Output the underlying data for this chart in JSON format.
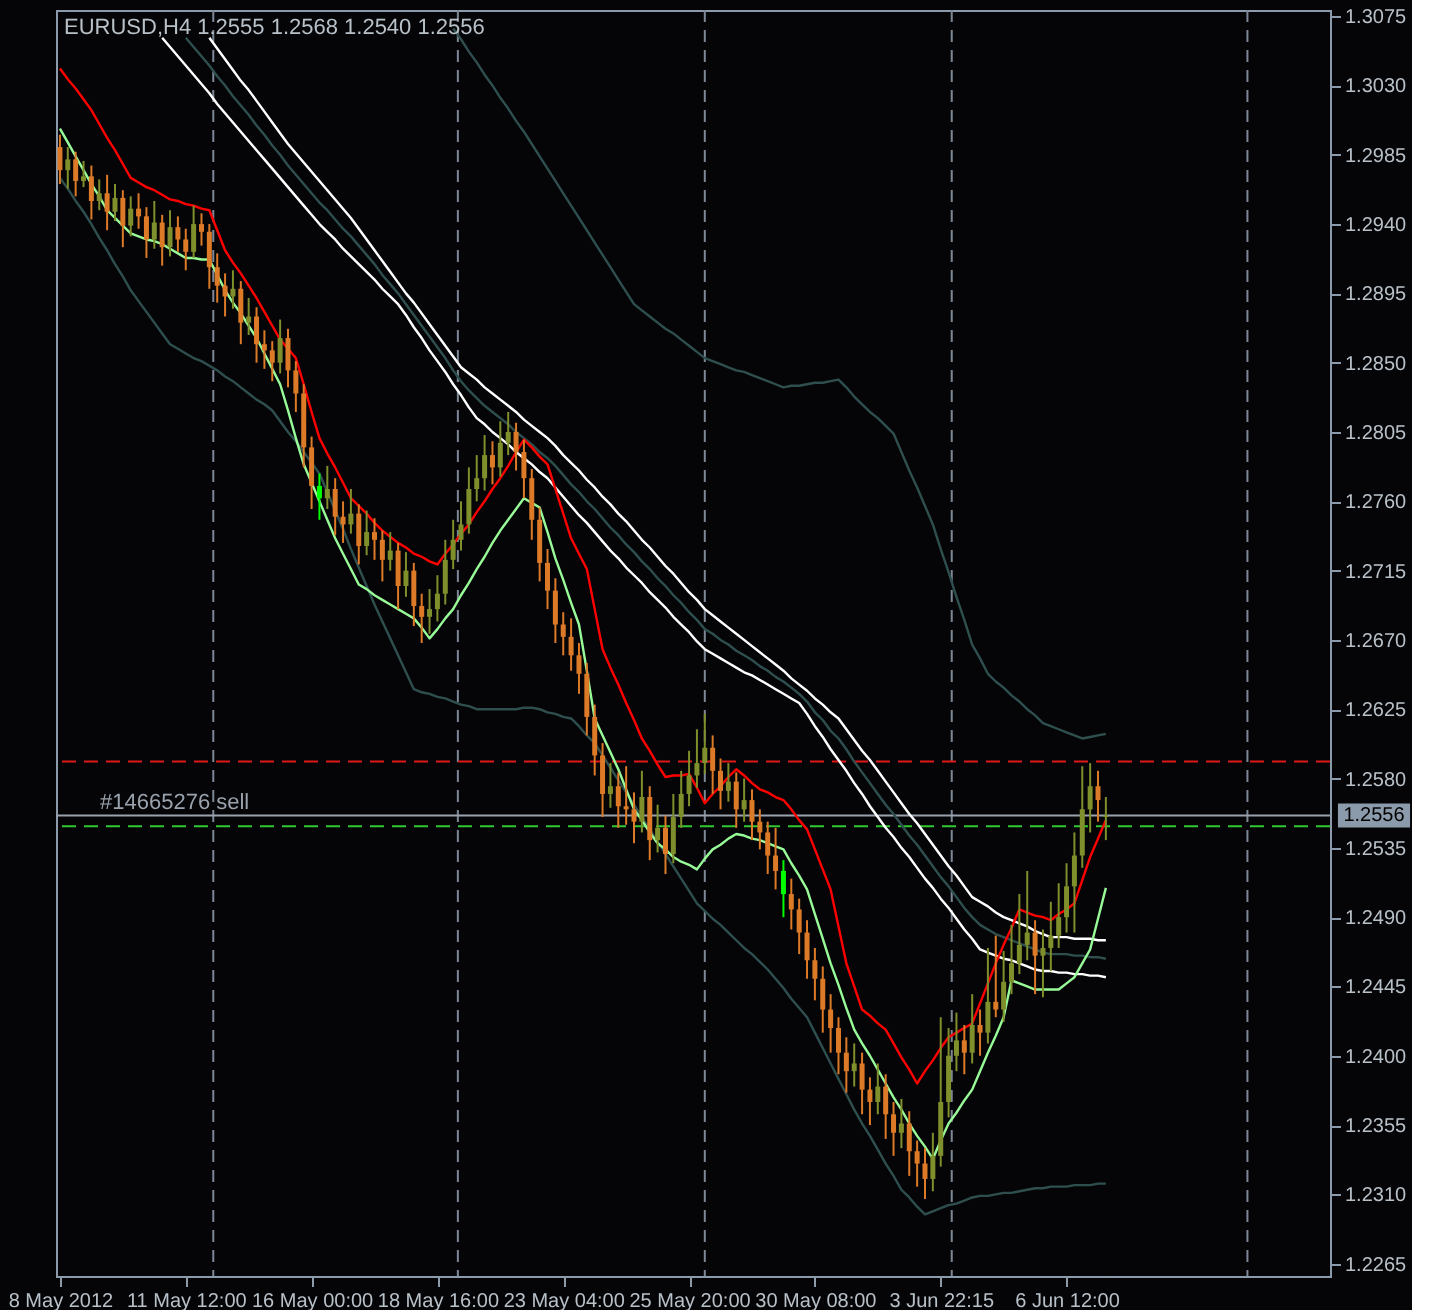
{
  "chart_data": {
    "type": "candlestick",
    "title": "EURUSD,H4  1.2555 1.2568 1.2540 1.2556",
    "categories": [
      "8 May 2012",
      null,
      null,
      null,
      null,
      null,
      null,
      null,
      null,
      null,
      null,
      null,
      null,
      null,
      null,
      null,
      "11 May 12:00",
      null,
      null,
      null,
      null,
      null,
      null,
      null,
      null,
      null,
      null,
      null,
      null,
      null,
      null,
      null,
      "16 May 00:00",
      null,
      null,
      null,
      null,
      null,
      null,
      null,
      null,
      null,
      null,
      null,
      null,
      null,
      null,
      null,
      "18 May 16:00",
      null,
      null,
      null,
      null,
      null,
      null,
      null,
      null,
      null,
      null,
      null,
      null,
      null,
      null,
      null,
      "23 May 04:00",
      null,
      null,
      null,
      null,
      null,
      null,
      null,
      null,
      null,
      null,
      null,
      null,
      null,
      null,
      null,
      "25 May 20:00",
      null,
      null,
      null,
      null,
      null,
      null,
      null,
      null,
      null,
      null,
      null,
      null,
      null,
      null,
      null,
      "30 May 08:00",
      null,
      null,
      null,
      null,
      null,
      null,
      null,
      null,
      null,
      null,
      null,
      null,
      null,
      null,
      null,
      "3 Jun 22:15",
      null,
      null,
      null,
      null,
      null,
      null,
      null,
      null,
      null,
      null,
      null,
      null,
      null,
      null,
      null,
      "6 Jun 12:00",
      null,
      null,
      null,
      null,
      null
    ],
    "ohlc": [
      [
        1.299,
        1.2998,
        1.2966,
        1.2975
      ],
      [
        1.2975,
        1.299,
        1.2963,
        1.2982
      ],
      [
        1.2982,
        1.2987,
        1.2958,
        1.2968
      ],
      [
        1.2968,
        1.2981,
        1.2964,
        1.2971
      ],
      [
        1.2971,
        1.2978,
        1.2943,
        1.2955
      ],
      [
        1.2955,
        1.2969,
        1.2949,
        1.296
      ],
      [
        1.296,
        1.2972,
        1.2936,
        1.2948
      ],
      [
        1.2948,
        1.2966,
        1.2942,
        1.2957
      ],
      [
        1.2957,
        1.2962,
        1.2925,
        1.2939
      ],
      [
        1.2939,
        1.2958,
        1.2932,
        1.295
      ],
      [
        1.295,
        1.296,
        1.2937,
        1.2945
      ],
      [
        1.2945,
        1.2951,
        1.2918,
        1.293
      ],
      [
        1.293,
        1.2955,
        1.2924,
        1.2941
      ],
      [
        1.2941,
        1.2946,
        1.2913,
        1.2925
      ],
      [
        1.2925,
        1.2949,
        1.2919,
        1.2938
      ],
      [
        1.2938,
        1.2945,
        1.2922,
        1.293
      ],
      [
        1.293,
        1.2937,
        1.291,
        1.2922
      ],
      [
        1.2922,
        1.2952,
        1.2918,
        1.294
      ],
      [
        1.294,
        1.2947,
        1.2926,
        1.2935
      ],
      [
        1.2935,
        1.294,
        1.2898,
        1.2912
      ],
      [
        1.2912,
        1.2921,
        1.2889,
        1.29
      ],
      [
        1.29,
        1.2908,
        1.288,
        1.2893
      ],
      [
        1.2893,
        1.291,
        1.2885,
        1.2898
      ],
      [
        1.2898,
        1.2903,
        1.2862,
        1.2876
      ],
      [
        1.2876,
        1.2892,
        1.2868,
        1.288
      ],
      [
        1.288,
        1.2886,
        1.285,
        1.2862
      ],
      [
        1.2862,
        1.2871,
        1.2846,
        1.2858
      ],
      [
        1.2858,
        1.2864,
        1.2838,
        1.285
      ],
      [
        1.285,
        1.2878,
        1.2843,
        1.2866
      ],
      [
        1.2866,
        1.2872,
        1.2834,
        1.2845
      ],
      [
        1.2845,
        1.2851,
        1.2818,
        1.283
      ],
      [
        1.283,
        1.2836,
        1.2782,
        1.2795
      ],
      [
        1.2795,
        1.2802,
        1.2755,
        1.277
      ],
      [
        1.277,
        1.2778,
        1.2748,
        1.2762
      ],
      [
        1.2762,
        1.2783,
        1.2755,
        1.2768
      ],
      [
        1.2768,
        1.2775,
        1.2738,
        1.275
      ],
      [
        1.275,
        1.276,
        1.2733,
        1.2745
      ],
      [
        1.2745,
        1.2768,
        1.2739,
        1.2752
      ],
      [
        1.2752,
        1.2758,
        1.2719,
        1.2731
      ],
      [
        1.2731,
        1.2754,
        1.2725,
        1.274
      ],
      [
        1.274,
        1.2749,
        1.2722,
        1.2735
      ],
      [
        1.2735,
        1.2741,
        1.2708,
        1.2722
      ],
      [
        1.2722,
        1.274,
        1.2715,
        1.2728
      ],
      [
        1.2728,
        1.2733,
        1.269,
        1.2705
      ],
      [
        1.2705,
        1.2727,
        1.2698,
        1.2715
      ],
      [
        1.2715,
        1.272,
        1.2679,
        1.2692
      ],
      [
        1.2692,
        1.27,
        1.2668,
        1.2685
      ],
      [
        1.2685,
        1.2703,
        1.2674,
        1.269
      ],
      [
        1.269,
        1.2712,
        1.2682,
        1.27
      ],
      [
        1.27,
        1.2735,
        1.2693,
        1.2722
      ],
      [
        1.2722,
        1.2748,
        1.2716,
        1.2735
      ],
      [
        1.2735,
        1.276,
        1.2728,
        1.2745
      ],
      [
        1.2745,
        1.2782,
        1.2739,
        1.2768
      ],
      [
        1.2768,
        1.279,
        1.276,
        1.2775
      ],
      [
        1.2775,
        1.2803,
        1.2767,
        1.279
      ],
      [
        1.279,
        1.2799,
        1.2771,
        1.2782
      ],
      [
        1.2782,
        1.2812,
        1.2776,
        1.2798
      ],
      [
        1.2798,
        1.2818,
        1.279,
        1.2805
      ],
      [
        1.2805,
        1.2811,
        1.278,
        1.2792
      ],
      [
        1.2792,
        1.28,
        1.2762,
        1.2775
      ],
      [
        1.2775,
        1.2781,
        1.2735,
        1.2748
      ],
      [
        1.2748,
        1.2756,
        1.2708,
        1.272
      ],
      [
        1.272,
        1.2729,
        1.269,
        1.2702
      ],
      [
        1.2702,
        1.271,
        1.2668,
        1.268
      ],
      [
        1.268,
        1.2688,
        1.266,
        1.2672
      ],
      [
        1.2672,
        1.2684,
        1.265,
        1.266
      ],
      [
        1.266,
        1.2668,
        1.2635,
        1.2648
      ],
      [
        1.2648,
        1.2655,
        1.2608,
        1.262
      ],
      [
        1.262,
        1.2628,
        1.2582,
        1.2595
      ],
      [
        1.2595,
        1.2603,
        1.2555,
        1.257
      ],
      [
        1.257,
        1.259,
        1.2561,
        1.2575
      ],
      [
        1.2575,
        1.2584,
        1.2548,
        1.2562
      ],
      [
        1.2562,
        1.2588,
        1.255,
        1.256
      ],
      [
        1.256,
        1.2571,
        1.2538,
        1.2552
      ],
      [
        1.2552,
        1.2585,
        1.2545,
        1.2568
      ],
      [
        1.2568,
        1.2575,
        1.2527,
        1.254
      ],
      [
        1.254,
        1.2563,
        1.2532,
        1.2548
      ],
      [
        1.2548,
        1.2556,
        1.2518,
        1.2531
      ],
      [
        1.2531,
        1.257,
        1.2525,
        1.2555
      ],
      [
        1.2555,
        1.2585,
        1.2548,
        1.257
      ],
      [
        1.257,
        1.2598,
        1.2562,
        1.2582
      ],
      [
        1.2582,
        1.2612,
        1.2574,
        1.259
      ],
      [
        1.259,
        1.2622,
        1.2583,
        1.26
      ],
      [
        1.26,
        1.2608,
        1.257,
        1.2585
      ],
      [
        1.2585,
        1.2593,
        1.256,
        1.2572
      ],
      [
        1.2572,
        1.259,
        1.2565,
        1.2578
      ],
      [
        1.2578,
        1.2584,
        1.2548,
        1.256
      ],
      [
        1.256,
        1.258,
        1.2552,
        1.2566
      ],
      [
        1.2566,
        1.2573,
        1.254,
        1.2552
      ],
      [
        1.2552,
        1.256,
        1.2534,
        1.2545
      ],
      [
        1.2545,
        1.2552,
        1.2518,
        1.253
      ],
      [
        1.253,
        1.2548,
        1.2508,
        1.252
      ],
      [
        1.252,
        1.2527,
        1.249,
        1.2505
      ],
      [
        1.2505,
        1.2515,
        1.2482,
        1.2495
      ],
      [
        1.2495,
        1.2502,
        1.2466,
        1.248
      ],
      [
        1.248,
        1.2488,
        1.245,
        1.2462
      ],
      [
        1.2462,
        1.247,
        1.2436,
        1.245
      ],
      [
        1.245,
        1.2458,
        1.2415,
        1.243
      ],
      [
        1.243,
        1.244,
        1.2402,
        1.2418
      ],
      [
        1.2418,
        1.2425,
        1.2388,
        1.2402
      ],
      [
        1.2402,
        1.2412,
        1.2376,
        1.239
      ],
      [
        1.239,
        1.2408,
        1.238,
        1.2395
      ],
      [
        1.2395,
        1.2402,
        1.2362,
        1.2378
      ],
      [
        1.2378,
        1.2386,
        1.2355,
        1.237
      ],
      [
        1.237,
        1.2395,
        1.2362,
        1.238
      ],
      [
        1.238,
        1.2388,
        1.2346,
        1.2362
      ],
      [
        1.2362,
        1.237,
        1.2335,
        1.235
      ],
      [
        1.235,
        1.2372,
        1.234,
        1.2356
      ],
      [
        1.2356,
        1.2364,
        1.2322,
        1.2338
      ],
      [
        1.2338,
        1.2345,
        1.2315,
        1.233
      ],
      [
        1.233,
        1.234,
        1.2307,
        1.232
      ],
      [
        1.232,
        1.235,
        1.2312,
        1.2335
      ],
      [
        1.2335,
        1.2425,
        1.2328,
        1.237
      ],
      [
        1.237,
        1.2418,
        1.236,
        1.24
      ],
      [
        1.24,
        1.2428,
        1.239,
        1.241
      ],
      [
        1.241,
        1.242,
        1.2388,
        1.2402
      ],
      [
        1.2402,
        1.244,
        1.2395,
        1.242
      ],
      [
        1.242,
        1.243,
        1.24,
        1.2415
      ],
      [
        1.2415,
        1.247,
        1.2408,
        1.2435
      ],
      [
        1.2435,
        1.2478,
        1.2425,
        1.243
      ],
      [
        1.243,
        1.2468,
        1.2422,
        1.2448
      ],
      [
        1.2448,
        1.2485,
        1.244,
        1.246
      ],
      [
        1.246,
        1.2505,
        1.2453,
        1.2472
      ],
      [
        1.2472,
        1.252,
        1.2462,
        1.248
      ],
      [
        1.248,
        1.2488,
        1.244,
        1.2465
      ],
      [
        1.2465,
        1.2482,
        1.2438,
        1.247
      ],
      [
        1.247,
        1.25,
        1.2455,
        1.2478
      ],
      [
        1.2478,
        1.2512,
        1.247,
        1.249
      ],
      [
        1.249,
        1.2525,
        1.248,
        1.251
      ],
      [
        1.251,
        1.2545,
        1.248,
        1.253
      ],
      [
        1.253,
        1.2588,
        1.2522,
        1.256
      ],
      [
        1.256,
        1.259,
        1.2545,
        1.2575
      ],
      [
        1.2575,
        1.2585,
        1.2552,
        1.2566
      ],
      [
        1.2555,
        1.2568,
        1.254,
        1.2556
      ]
    ],
    "colors": [
      "#dd7a27",
      "#7f8f2b",
      "#dd7a27",
      "#7f8f2b",
      "#dd7a27",
      "#7f8f2b",
      "#dd7a27",
      "#7f8f2b",
      "#dd7a27",
      "#7f8f2b",
      "#dd7a27",
      "#dd7a27",
      "#7f8f2b",
      "#dd7a27",
      "#7f8f2b",
      "#dd7a27",
      "#dd7a27",
      "#7f8f2b",
      "#dd7a27",
      "#dd7a27",
      "#dd7a27",
      "#dd7a27",
      "#7f8f2b",
      "#dd7a27",
      "#7f8f2b",
      "#dd7a27",
      "#dd7a27",
      "#dd7a27",
      "#7f8f2b",
      "#dd7a27",
      "#dd7a27",
      "#dd7a27",
      "#dd7a27",
      "#00ff00",
      "#7f8f2b",
      "#dd7a27",
      "#dd7a27",
      "#7f8f2b",
      "#dd7a27",
      "#7f8f2b",
      "#dd7a27",
      "#dd7a27",
      "#7f8f2b",
      "#dd7a27",
      "#7f8f2b",
      "#dd7a27",
      "#dd7a27",
      "#7f8f2b",
      "#7f8f2b",
      "#7f8f2b",
      "#7f8f2b",
      "#7f8f2b",
      "#7f8f2b",
      "#7f8f2b",
      "#7f8f2b",
      "#dd7a27",
      "#7f8f2b",
      "#7f8f2b",
      "#dd7a27",
      "#dd7a27",
      "#dd7a27",
      "#dd7a27",
      "#dd7a27",
      "#dd7a27",
      "#dd7a27",
      "#dd7a27",
      "#dd7a27",
      "#dd7a27",
      "#dd7a27",
      "#dd7a27",
      "#7f8f2b",
      "#dd7a27",
      "#dd7a27",
      "#dd7a27",
      "#7f8f2b",
      "#dd7a27",
      "#7f8f2b",
      "#dd7a27",
      "#7f8f2b",
      "#7f8f2b",
      "#7f8f2b",
      "#7f8f2b",
      "#7f8f2b",
      "#dd7a27",
      "#dd7a27",
      "#7f8f2b",
      "#dd7a27",
      "#7f8f2b",
      "#dd7a27",
      "#dd7a27",
      "#dd7a27",
      "#dd7a27",
      "#00ff00",
      "#dd7a27",
      "#dd7a27",
      "#dd7a27",
      "#dd7a27",
      "#dd7a27",
      "#dd7a27",
      "#dd7a27",
      "#dd7a27",
      "#7f8f2b",
      "#dd7a27",
      "#dd7a27",
      "#7f8f2b",
      "#dd7a27",
      "#dd7a27",
      "#7f8f2b",
      "#dd7a27",
      "#dd7a27",
      "#dd7a27",
      "#7f8f2b",
      "#7f8f2b",
      "#7f8f2b",
      "#7f8f2b",
      "#dd7a27",
      "#7f8f2b",
      "#dd7a27",
      "#7f8f2b",
      "#dd7a27",
      "#7f8f2b",
      "#7f8f2b",
      "#7f8f2b",
      "#7f8f2b",
      "#dd7a27",
      "#7f8f2b",
      "#7f8f2b",
      "#7f8f2b",
      "#7f8f2b",
      "#7f8f2b",
      "#7f8f2b",
      "#7f8f2b",
      "#dd7a27",
      "#7f8f2b"
    ],
    "series": [
      {
        "type": "line",
        "color": "#2f4f4f",
        "values": [
          null,
          null,
          null,
          null,
          null,
          null,
          null,
          null,
          null,
          null,
          null,
          null,
          null,
          null,
          null,
          null,
          null,
          null,
          null,
          null,
          null,
          null,
          null,
          null,
          null,
          null,
          null,
          null,
          null,
          null,
          null,
          null,
          null,
          null,
          null,
          null,
          null,
          null,
          null,
          null,
          null,
          null,
          null,
          null,
          null,
          null,
          null,
          null,
          null,
          null,
          1.3067,
          1.306,
          1.3052,
          1.3045,
          1.3037,
          1.303,
          1.3022,
          1.3015,
          1.3007,
          1.3,
          1.2992,
          1.2984,
          1.2976,
          1.2968,
          1.296,
          1.2952,
          1.2944,
          1.2936,
          1.2928,
          1.292,
          1.2912,
          1.2904,
          1.2896,
          1.2888,
          1.2884,
          1.288,
          1.2876,
          1.2872,
          1.2869,
          1.2865,
          1.2861,
          1.2857,
          1.2853,
          1.2851,
          1.2849,
          1.2847,
          1.2845,
          1.2844,
          1.2842,
          1.284,
          1.2838,
          1.2836,
          1.2834,
          1.2835,
          1.2835,
          1.2836,
          1.2837,
          1.2837,
          1.2838,
          1.2839,
          1.2834,
          1.2828,
          1.2823,
          1.2818,
          1.2814,
          1.2809,
          1.2804,
          1.2792,
          1.278,
          1.2769,
          1.2757,
          1.2745,
          1.2729,
          1.2714,
          1.2698,
          1.2683,
          1.2667,
          1.2658,
          1.2648,
          1.2643,
          1.2639,
          1.2634,
          1.263,
          1.2625,
          1.2621,
          1.2616,
          1.2614,
          1.2612,
          1.261,
          1.2608,
          1.2606,
          1.2607,
          1.2608,
          1.2609
        ]
      },
      {
        "type": "line",
        "color": "#2f4f4f",
        "values": [
          1.297,
          1.2963,
          1.2955,
          1.2948,
          1.294,
          1.2931,
          1.2923,
          1.2914,
          1.2906,
          1.2897,
          1.289,
          1.2883,
          1.2876,
          1.2869,
          1.2862,
          1.2859,
          1.2856,
          1.2853,
          1.2851,
          1.2848,
          1.2845,
          1.2841,
          1.2838,
          1.2834,
          1.283,
          1.2826,
          1.2823,
          1.2819,
          1.2812,
          1.2805,
          1.2799,
          1.2792,
          1.2785,
          1.2778,
          1.2766,
          1.2754,
          1.2742,
          1.2729,
          1.2717,
          1.2705,
          1.2693,
          1.2682,
          1.2671,
          1.266,
          1.2649,
          1.2638,
          1.2636,
          1.2635,
          1.2633,
          1.2632,
          1.263,
          1.2628,
          1.2627,
          1.2625,
          1.2625,
          1.2625,
          1.2625,
          1.2625,
          1.2625,
          1.2626,
          1.2626,
          1.2625,
          1.2623,
          1.2622,
          1.262,
          1.2619,
          1.2614,
          1.2608,
          1.2603,
          1.2595,
          1.2587,
          1.2579,
          1.2571,
          1.2563,
          1.2555,
          1.2547,
          1.2539,
          1.2531,
          1.2523,
          1.2515,
          1.2507,
          1.2499,
          1.2494,
          1.2489,
          1.2485,
          1.248,
          1.2475,
          1.247,
          1.2466,
          1.2461,
          1.2456,
          1.245,
          1.2444,
          1.2437,
          1.2431,
          1.2425,
          1.2415,
          1.2405,
          1.2395,
          1.2385,
          1.2375,
          1.2365,
          1.2356,
          1.2348,
          1.2339,
          1.233,
          1.2322,
          1.2313,
          1.2308,
          1.2302,
          1.2297,
          1.2299,
          1.2301,
          1.2303,
          1.2304,
          1.2306,
          1.2308,
          1.2309,
          1.2309,
          1.231,
          1.2311,
          1.2311,
          1.2312,
          1.2313,
          1.2314,
          1.2314,
          1.2315,
          1.2315,
          1.2315,
          1.2316,
          1.2316,
          1.2316,
          1.2317,
          1.2317
        ]
      },
      {
        "type": "line",
        "color": "#2f4f4f",
        "values": [
          null,
          null,
          null,
          null,
          null,
          null,
          null,
          null,
          null,
          null,
          null,
          null,
          null,
          null,
          null,
          null,
          1.3061,
          1.3055,
          1.3049,
          1.3043,
          1.3036,
          1.303,
          1.3023,
          1.3017,
          1.3011,
          1.3004,
          1.2998,
          1.2991,
          1.2985,
          1.2978,
          1.2972,
          1.2966,
          1.296,
          1.2954,
          1.2949,
          1.2943,
          1.2937,
          1.2932,
          1.2926,
          1.292,
          1.2914,
          1.2907,
          1.2901,
          1.2895,
          1.2888,
          1.2881,
          1.2874,
          1.2867,
          1.286,
          1.2853,
          1.2845,
          1.2838,
          1.2832,
          1.2827,
          1.2822,
          1.2818,
          1.2814,
          1.281,
          1.2805,
          1.2801,
          1.2797,
          1.2792,
          1.2788,
          1.2783,
          1.2777,
          1.2771,
          1.2766,
          1.276,
          1.2755,
          1.2749,
          1.2743,
          1.2738,
          1.2732,
          1.2727,
          1.2721,
          1.2716,
          1.271,
          1.2705,
          1.2699,
          1.2694,
          1.2688,
          1.2683,
          1.2677,
          1.2674,
          1.267,
          1.2667,
          1.2663,
          1.266,
          1.2657,
          1.2653,
          1.265,
          1.2646,
          1.2643,
          1.2639,
          1.2635,
          1.263,
          1.2623,
          1.2618,
          1.2611,
          1.2606,
          1.2599,
          1.2591,
          1.2584,
          1.2577,
          1.257,
          1.2563,
          1.2557,
          1.255,
          1.2543,
          1.2537,
          1.253,
          1.2523,
          1.2516,
          1.251,
          1.2503,
          1.2496,
          1.249,
          1.2485,
          1.2482,
          1.2479,
          1.2477,
          1.2475,
          1.2473,
          1.2471,
          1.2469,
          1.2467,
          1.2466,
          1.2466,
          1.2466,
          1.2465,
          1.2465,
          1.2464,
          1.2464,
          1.2463
        ]
      },
      {
        "type": "line",
        "color": "#ffffff",
        "values": [
          null,
          null,
          null,
          null,
          null,
          null,
          null,
          null,
          null,
          null,
          null,
          null,
          null,
          null,
          null,
          null,
          null,
          null,
          null,
          1.3061,
          1.3054,
          1.3047,
          1.304,
          1.3033,
          1.3027,
          1.302,
          1.3013,
          1.3006,
          1.2999,
          1.2992,
          1.2986,
          1.298,
          1.2974,
          1.2968,
          1.2962,
          1.2956,
          1.295,
          1.2944,
          1.2937,
          1.293,
          1.2923,
          1.2916,
          1.2909,
          1.2902,
          1.2895,
          1.2889,
          1.2882,
          1.2875,
          1.2868,
          1.2861,
          1.2854,
          1.2847,
          1.2843,
          1.2839,
          1.2834,
          1.283,
          1.2826,
          1.2822,
          1.2818,
          1.2813,
          1.2809,
          1.2805,
          1.2801,
          1.2796,
          1.279,
          1.2785,
          1.278,
          1.2774,
          1.2769,
          1.2763,
          1.2758,
          1.2752,
          1.2747,
          1.2741,
          1.2735,
          1.273,
          1.2724,
          1.2718,
          1.2713,
          1.2707,
          1.2701,
          1.2696,
          1.269,
          1.2686,
          1.2682,
          1.2678,
          1.2674,
          1.267,
          1.2666,
          1.2662,
          1.2658,
          1.2654,
          1.265,
          1.2645,
          1.2641,
          1.2637,
          1.2632,
          1.2628,
          1.2623,
          1.2619,
          1.2612,
          1.2605,
          1.2598,
          1.2592,
          1.2585,
          1.2578,
          1.2571,
          1.2564,
          1.2557,
          1.2551,
          1.2544,
          1.2537,
          1.253,
          1.2523,
          1.2517,
          1.251,
          1.2503,
          1.25,
          1.2497,
          1.2493,
          1.249,
          1.2488,
          1.2486,
          1.2484,
          1.2481,
          1.2479,
          1.2477,
          1.2477,
          1.2477,
          1.2476,
          1.2476,
          1.2476,
          1.2475,
          1.2475
        ]
      },
      {
        "type": "line",
        "color": "#ffffff",
        "values": [
          null,
          null,
          null,
          null,
          null,
          null,
          null,
          null,
          null,
          null,
          null,
          null,
          null,
          1.3061,
          1.3055,
          1.3049,
          1.3043,
          1.3037,
          1.3031,
          1.3025,
          1.3018,
          1.3012,
          1.3006,
          1.3,
          1.2994,
          1.2988,
          1.2982,
          1.2976,
          1.297,
          1.2964,
          1.2958,
          1.2952,
          1.2946,
          1.294,
          1.2935,
          1.293,
          1.2924,
          1.2919,
          1.2914,
          1.2909,
          1.2904,
          1.2898,
          1.2893,
          1.2888,
          1.2881,
          1.2873,
          1.2866,
          1.2858,
          1.2851,
          1.2844,
          1.2836,
          1.2829,
          1.2821,
          1.2814,
          1.281,
          1.2805,
          1.2801,
          1.2797,
          1.2792,
          1.2788,
          1.2784,
          1.2779,
          1.2775,
          1.2769,
          1.2763,
          1.2757,
          1.2751,
          1.2746,
          1.274,
          1.2734,
          1.2728,
          1.2723,
          1.2717,
          1.2712,
          1.2707,
          1.2701,
          1.2696,
          1.2691,
          1.2685,
          1.268,
          1.2675,
          1.2669,
          1.2664,
          1.2661,
          1.2658,
          1.2655,
          1.2652,
          1.2649,
          1.2647,
          1.2644,
          1.2641,
          1.2638,
          1.2635,
          1.2632,
          1.2629,
          1.2622,
          1.2614,
          1.2607,
          1.2599,
          1.2592,
          1.2585,
          1.2577,
          1.257,
          1.2562,
          1.2555,
          1.2548,
          1.2542,
          1.2535,
          1.2529,
          1.2522,
          1.2515,
          1.2509,
          1.2502,
          1.2496,
          1.2489,
          1.2482,
          1.2476,
          1.2469,
          1.2467,
          1.2465,
          1.2463,
          1.2462,
          1.246,
          1.2458,
          1.2456,
          1.2455,
          1.2455,
          1.2454,
          1.2454,
          1.2453,
          1.2453,
          1.2452,
          1.2452,
          1.2451
        ]
      },
      {
        "type": "line",
        "color": "#ff0000",
        "values": [
          1.3041,
          1.3034,
          1.3028,
          1.3021,
          1.3014,
          1.3005,
          1.2996,
          1.2988,
          1.2979,
          1.297,
          1.2967,
          1.2964,
          1.2962,
          1.2959,
          1.2956,
          1.2955,
          1.2953,
          1.2952,
          1.295,
          1.2949,
          1.2936,
          1.2923,
          1.2915,
          1.2908,
          1.29,
          1.2892,
          1.2883,
          1.2874,
          1.2865,
          1.2859,
          1.2853,
          1.2836,
          1.2818,
          1.2801,
          1.2791,
          1.2782,
          1.2772,
          1.2762,
          1.2757,
          1.2752,
          1.2746,
          1.2741,
          1.2737,
          1.2733,
          1.273,
          1.2726,
          1.2724,
          1.2721,
          1.2719,
          1.2726,
          1.2732,
          1.2739,
          1.2745,
          1.2753,
          1.276,
          1.2768,
          1.2775,
          1.2783,
          1.2792,
          1.28,
          1.2795,
          1.2789,
          1.2784,
          1.2768,
          1.2752,
          1.2736,
          1.2726,
          1.2716,
          1.269,
          1.2664,
          1.2652,
          1.2641,
          1.2629,
          1.2618,
          1.2606,
          1.2598,
          1.2589,
          1.2581,
          1.2582,
          1.2582,
          1.2583,
          1.2574,
          1.2564,
          1.257,
          1.2575,
          1.2581,
          1.2586,
          1.2582,
          1.2577,
          1.2573,
          1.2571,
          1.2568,
          1.2566,
          1.256,
          1.2553,
          1.2547,
          1.2534,
          1.2521,
          1.2508,
          1.2484,
          1.246,
          1.2445,
          1.243,
          1.2426,
          1.2421,
          1.2417,
          1.2408,
          1.2399,
          1.2391,
          1.2382,
          1.239,
          1.2397,
          1.2405,
          1.2412,
          1.2415,
          1.2418,
          1.2421,
          1.2434,
          1.2447,
          1.246,
          1.2472,
          1.2483,
          1.2495,
          1.2493,
          1.2491,
          1.249,
          1.2488,
          1.2492,
          1.2495,
          1.2499,
          1.2514,
          1.2529,
          1.2541,
          1.2553
        ]
      },
      {
        "type": "line",
        "color": "#98fb98",
        "values": [
          1.3002,
          1.2993,
          1.2984,
          1.2975,
          1.2966,
          1.2958,
          1.2949,
          1.2944,
          1.2939,
          1.2934,
          1.2932,
          1.293,
          1.2929,
          1.2927,
          1.2924,
          1.2921,
          1.2918,
          1.2918,
          1.2917,
          1.2917,
          1.2907,
          1.2897,
          1.2889,
          1.2882,
          1.2874,
          1.2866,
          1.2856,
          1.2846,
          1.2836,
          1.2819,
          1.2801,
          1.2784,
          1.2772,
          1.276,
          1.2748,
          1.2736,
          1.2726,
          1.2716,
          1.2706,
          1.2703,
          1.2699,
          1.2696,
          1.2693,
          1.269,
          1.2687,
          1.2684,
          1.2678,
          1.2671,
          1.2677,
          1.2684,
          1.269,
          1.2699,
          1.2707,
          1.2716,
          1.2724,
          1.2733,
          1.2741,
          1.2748,
          1.2755,
          1.2762,
          1.2759,
          1.2756,
          1.274,
          1.2723,
          1.2709,
          1.2694,
          1.268,
          1.265,
          1.2619,
          1.2608,
          1.2597,
          1.2586,
          1.2573,
          1.256,
          1.2553,
          1.2545,
          1.2538,
          1.2534,
          1.2529,
          1.2526,
          1.2524,
          1.2521,
          1.2528,
          1.2534,
          1.2537,
          1.2541,
          1.2544,
          1.2543,
          1.2541,
          1.254,
          1.2538,
          1.2536,
          1.2534,
          1.2525,
          1.2517,
          1.2508,
          1.2492,
          1.2476,
          1.246,
          1.2446,
          1.2431,
          1.2417,
          1.2408,
          1.24,
          1.2391,
          1.2382,
          1.2373,
          1.2365,
          1.2356,
          1.2348,
          1.2341,
          1.2333,
          1.2345,
          1.2356,
          1.2363,
          1.2371,
          1.2378,
          1.239,
          1.2402,
          1.2413,
          1.2425,
          1.2449,
          1.2447,
          1.2445,
          1.2443,
          1.2443,
          1.2443,
          1.2443,
          1.2447,
          1.2451,
          1.246,
          1.2469,
          1.2489,
          1.2509
        ]
      }
    ],
    "ylim": [
      1.2257,
      1.3079
    ],
    "yticks": [
      1.3075,
      {
        "value": 1.303,
        "label": "1.3030"
      },
      1.2985,
      {
        "value": 1.294,
        "label": "1.2940"
      },
      1.2895,
      {
        "value": 1.285,
        "label": "1.2850"
      },
      1.2805,
      {
        "value": 1.276,
        "label": "1.2760"
      },
      1.2715,
      {
        "value": 1.267,
        "label": "1.2670"
      },
      1.2625,
      {
        "value": 1.258,
        "label": "1.2580"
      },
      1.2535,
      {
        "value": 1.249,
        "label": "1.2490"
      },
      1.2445,
      {
        "value": 1.24,
        "label": "1.2400"
      },
      1.2355,
      {
        "value": 1.231,
        "label": "1.2310"
      },
      1.2265
    ],
    "ref_lines": [
      {
        "axis": "y",
        "value": 1.2591,
        "label": null,
        "color": "#e01818",
        "line_style": "dashed"
      },
      {
        "axis": "y",
        "value": 1.2556,
        "label": "#14665276 sell",
        "color": "#9aa3ad",
        "line_style": "solid"
      },
      {
        "axis": "y",
        "value": 1.2549,
        "label": null,
        "color": "#32c832",
        "line_style": "dashed"
      }
    ],
    "annotations": [
      "1.2556"
    ]
  }
}
